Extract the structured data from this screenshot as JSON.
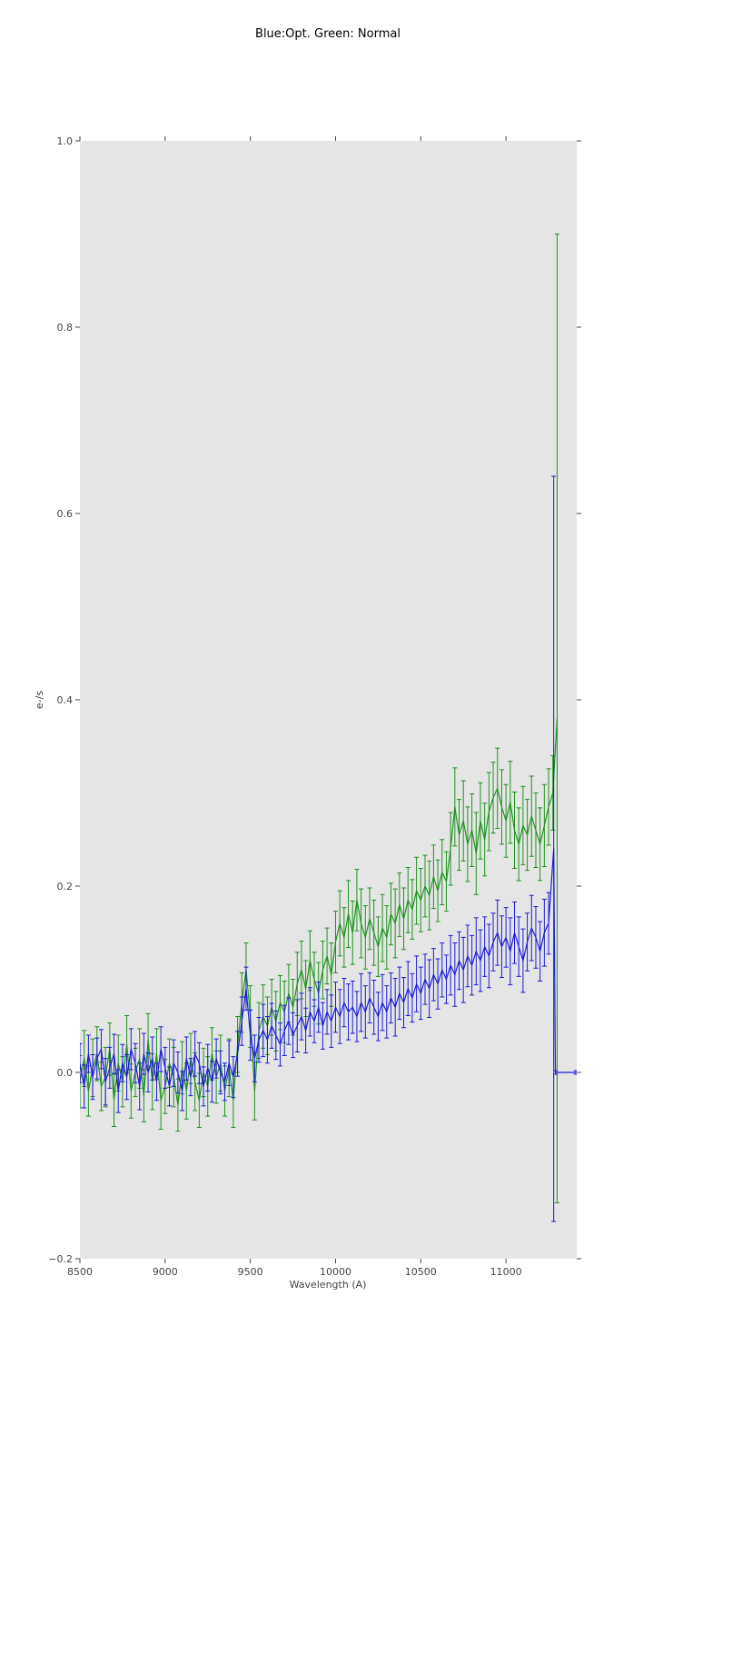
{
  "chart_data": {
    "type": "line",
    "title": "Blue:Opt. Green: Normal",
    "xlabel": "Wavelength (A)",
    "ylabel": "e-/s",
    "xlim": [
      8500,
      11415
    ],
    "ylim": [
      -0.2,
      1.0
    ],
    "xticks": [
      8500,
      9000,
      9500,
      10000,
      10500,
      11000
    ],
    "yticks": [
      -0.2,
      0.0,
      0.2,
      0.4,
      0.6,
      0.8,
      1.0
    ],
    "grid": false,
    "legend_position": "none",
    "error_bars": true,
    "colors": {
      "figure_background": "#ffffff",
      "plot_background": "#e5e5e5",
      "tick_text": "#444444",
      "title_text": "#000000",
      "blue_series": "#1c1cd6",
      "green_series": "#1f941f"
    },
    "series": [
      {
        "name": "Normal",
        "color": "#1f941f",
        "x": [
          8500,
          8525,
          8550,
          8575,
          8600,
          8625,
          8650,
          8675,
          8700,
          8725,
          8750,
          8775,
          8800,
          8825,
          8850,
          8875,
          8900,
          8925,
          8950,
          8975,
          9000,
          9025,
          9050,
          9075,
          9100,
          9125,
          9150,
          9175,
          9200,
          9225,
          9250,
          9275,
          9300,
          9325,
          9350,
          9375,
          9400,
          9425,
          9450,
          9475,
          9500,
          9525,
          9550,
          9575,
          9600,
          9625,
          9650,
          9675,
          9700,
          9725,
          9750,
          9775,
          9800,
          9825,
          9850,
          9875,
          9900,
          9925,
          9950,
          9975,
          10000,
          10025,
          10050,
          10075,
          10100,
          10125,
          10150,
          10175,
          10200,
          10225,
          10250,
          10275,
          10300,
          10325,
          10350,
          10375,
          10400,
          10425,
          10450,
          10475,
          10500,
          10525,
          10550,
          10575,
          10600,
          10625,
          10650,
          10675,
          10700,
          10725,
          10750,
          10775,
          10800,
          10825,
          10850,
          10875,
          10900,
          10925,
          10950,
          10975,
          11000,
          11025,
          11050,
          11075,
          11100,
          11125,
          11150,
          11175,
          11200,
          11225,
          11250,
          11275,
          11300
        ],
        "y": [
          -0.01,
          0.015,
          -0.02,
          0.005,
          0.02,
          -0.015,
          -0.005,
          0.025,
          -0.03,
          0.01,
          -0.01,
          0.03,
          -0.02,
          0.0,
          0.015,
          -0.025,
          0.035,
          -0.01,
          0.02,
          -0.03,
          -0.015,
          0.01,
          -0.005,
          -0.035,
          0.005,
          -0.02,
          0.015,
          -0.01,
          -0.03,
          0.0,
          -0.015,
          0.02,
          -0.005,
          0.01,
          -0.02,
          0.005,
          -0.03,
          0.03,
          0.075,
          0.11,
          0.06,
          -0.02,
          0.045,
          0.06,
          0.05,
          0.07,
          0.055,
          0.075,
          0.065,
          0.085,
          0.07,
          0.095,
          0.11,
          0.09,
          0.12,
          0.1,
          0.085,
          0.11,
          0.125,
          0.105,
          0.14,
          0.16,
          0.145,
          0.17,
          0.15,
          0.185,
          0.16,
          0.145,
          0.165,
          0.15,
          0.135,
          0.155,
          0.145,
          0.17,
          0.16,
          0.18,
          0.165,
          0.185,
          0.175,
          0.195,
          0.185,
          0.2,
          0.19,
          0.21,
          0.195,
          0.215,
          0.205,
          0.24,
          0.285,
          0.255,
          0.27,
          0.245,
          0.26,
          0.235,
          0.27,
          0.25,
          0.28,
          0.295,
          0.305,
          0.285,
          0.27,
          0.29,
          0.26,
          0.245,
          0.265,
          0.255,
          0.275,
          0.26,
          0.245,
          0.265,
          0.285,
          0.3,
          0.38
        ],
        "yerr": [
          0.028,
          0.03,
          0.027,
          0.031,
          0.029,
          0.026,
          0.032,
          0.028,
          0.028,
          0.03,
          0.027,
          0.031,
          0.029,
          0.026,
          0.032,
          0.028,
          0.028,
          0.03,
          0.027,
          0.031,
          0.029,
          0.026,
          0.032,
          0.028,
          0.028,
          0.03,
          0.027,
          0.031,
          0.029,
          0.026,
          0.032,
          0.028,
          0.028,
          0.03,
          0.027,
          0.031,
          0.029,
          0.03,
          0.032,
          0.029,
          0.033,
          0.031,
          0.03,
          0.034,
          0.031,
          0.03,
          0.032,
          0.029,
          0.033,
          0.031,
          0.03,
          0.034,
          0.031,
          0.03,
          0.032,
          0.029,
          0.033,
          0.031,
          0.03,
          0.034,
          0.033,
          0.035,
          0.032,
          0.036,
          0.034,
          0.033,
          0.037,
          0.034,
          0.033,
          0.035,
          0.032,
          0.036,
          0.034,
          0.033,
          0.037,
          0.034,
          0.033,
          0.035,
          0.032,
          0.036,
          0.034,
          0.033,
          0.037,
          0.034,
          0.033,
          0.035,
          0.032,
          0.039,
          0.042,
          0.038,
          0.043,
          0.04,
          0.039,
          0.044,
          0.041,
          0.039,
          0.042,
          0.038,
          0.043,
          0.04,
          0.039,
          0.044,
          0.041,
          0.039,
          0.042,
          0.038,
          0.043,
          0.04,
          0.039,
          0.044,
          0.041,
          0.04,
          0.52
        ]
      },
      {
        "name": "Opt",
        "color": "#1c1cd6",
        "x": [
          8500,
          8525,
          8550,
          8575,
          8600,
          8625,
          8650,
          8675,
          8700,
          8725,
          8750,
          8775,
          8800,
          8825,
          8850,
          8875,
          8900,
          8925,
          8950,
          8975,
          9000,
          9025,
          9050,
          9075,
          9100,
          9125,
          9150,
          9175,
          9200,
          9225,
          9250,
          9275,
          9300,
          9325,
          9350,
          9375,
          9400,
          9425,
          9450,
          9475,
          9500,
          9525,
          9550,
          9575,
          9600,
          9625,
          9650,
          9675,
          9700,
          9725,
          9750,
          9775,
          9800,
          9825,
          9850,
          9875,
          9900,
          9925,
          9950,
          9975,
          10000,
          10025,
          10050,
          10075,
          10100,
          10125,
          10150,
          10175,
          10200,
          10225,
          10250,
          10275,
          10300,
          10325,
          10350,
          10375,
          10400,
          10425,
          10450,
          10475,
          10500,
          10525,
          10550,
          10575,
          10600,
          10625,
          10650,
          10675,
          10700,
          10725,
          10750,
          10775,
          10800,
          10825,
          10850,
          10875,
          10900,
          10925,
          10950,
          10975,
          11000,
          11025,
          11050,
          11075,
          11100,
          11125,
          11150,
          11175,
          11200,
          11225,
          11250,
          11280,
          11290,
          11410
        ],
        "y": [
          0.01,
          -0.015,
          0.02,
          -0.005,
          0.015,
          0.025,
          -0.01,
          0.005,
          0.02,
          -0.02,
          0.01,
          -0.005,
          0.025,
          0.01,
          -0.015,
          0.02,
          0.0,
          0.015,
          -0.01,
          0.025,
          0.005,
          -0.015,
          0.01,
          0.0,
          -0.02,
          0.015,
          -0.005,
          0.02,
          0.01,
          -0.015,
          0.005,
          -0.01,
          0.015,
          0.0,
          -0.01,
          0.01,
          -0.005,
          0.02,
          0.055,
          0.09,
          0.04,
          0.015,
          0.035,
          0.045,
          0.035,
          0.05,
          0.04,
          0.03,
          0.045,
          0.055,
          0.04,
          0.05,
          0.06,
          0.045,
          0.065,
          0.055,
          0.07,
          0.05,
          0.065,
          0.055,
          0.07,
          0.06,
          0.075,
          0.065,
          0.07,
          0.06,
          0.075,
          0.065,
          0.08,
          0.07,
          0.06,
          0.075,
          0.065,
          0.08,
          0.07,
          0.085,
          0.075,
          0.09,
          0.08,
          0.095,
          0.085,
          0.1,
          0.09,
          0.105,
          0.095,
          0.11,
          0.1,
          0.115,
          0.105,
          0.12,
          0.11,
          0.125,
          0.115,
          0.13,
          0.12,
          0.135,
          0.125,
          0.14,
          0.15,
          0.135,
          0.145,
          0.13,
          0.15,
          0.135,
          0.12,
          0.14,
          0.155,
          0.145,
          0.13,
          0.15,
          0.16,
          0.24,
          0.0,
          0.0
        ],
        "yerr": [
          0.021,
          0.023,
          0.02,
          0.024,
          0.022,
          0.021,
          0.025,
          0.022,
          0.021,
          0.023,
          0.02,
          0.024,
          0.022,
          0.021,
          0.025,
          0.022,
          0.021,
          0.023,
          0.02,
          0.024,
          0.022,
          0.021,
          0.025,
          0.022,
          0.021,
          0.023,
          0.02,
          0.024,
          0.022,
          0.021,
          0.025,
          0.022,
          0.021,
          0.023,
          0.02,
          0.024,
          0.022,
          0.024,
          0.026,
          0.023,
          0.027,
          0.025,
          0.024,
          0.028,
          0.025,
          0.024,
          0.026,
          0.023,
          0.027,
          0.025,
          0.024,
          0.028,
          0.025,
          0.024,
          0.026,
          0.023,
          0.027,
          0.025,
          0.024,
          0.028,
          0.027,
          0.029,
          0.026,
          0.03,
          0.028,
          0.027,
          0.031,
          0.028,
          0.027,
          0.029,
          0.026,
          0.03,
          0.028,
          0.027,
          0.031,
          0.028,
          0.027,
          0.029,
          0.026,
          0.03,
          0.028,
          0.027,
          0.031,
          0.028,
          0.027,
          0.029,
          0.026,
          0.032,
          0.034,
          0.031,
          0.035,
          0.033,
          0.032,
          0.036,
          0.033,
          0.032,
          0.034,
          0.031,
          0.035,
          0.033,
          0.032,
          0.036,
          0.033,
          0.032,
          0.034,
          0.031,
          0.035,
          0.033,
          0.032,
          0.036,
          0.033,
          0.4,
          0.002,
          0.002
        ]
      }
    ]
  }
}
